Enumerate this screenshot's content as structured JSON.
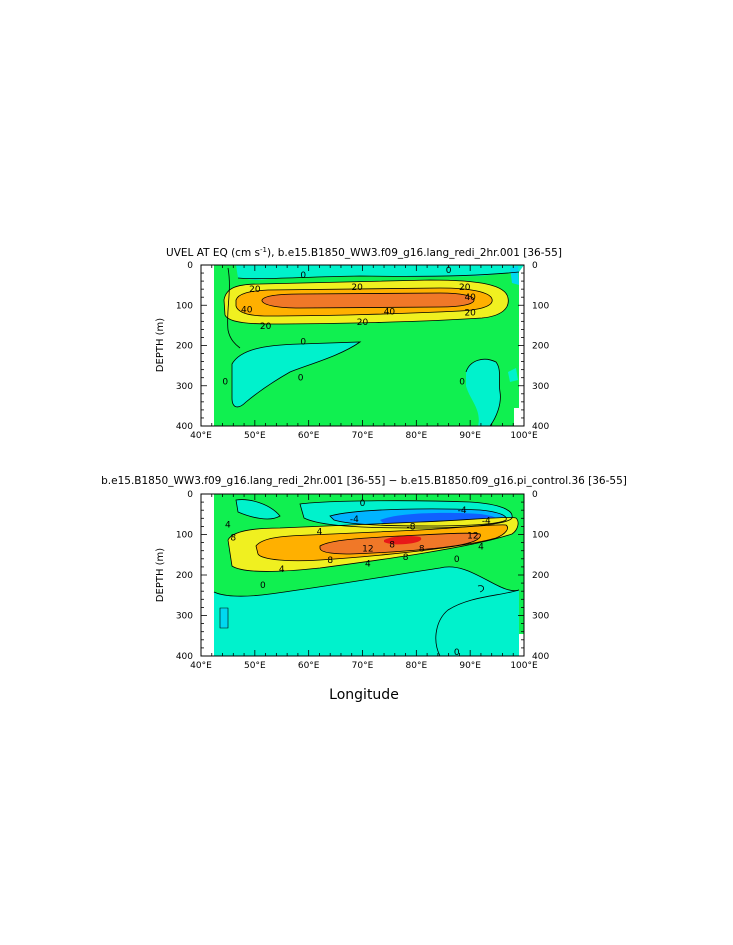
{
  "chart_data": [
    {
      "type": "heatmap",
      "title": "UVEL AT EQ (cm s",
      "title_sup": "-1",
      "title_rest": "), b.e15.B1850_WW3.f09_g16.lang_redi_2hr.001  [36-55]",
      "xlabel": "",
      "ylabel": "DEPTH (m)",
      "xlim": [
        40,
        100
      ],
      "ylim": [
        400,
        0
      ],
      "x_ticks": [
        "40°E",
        "50°E",
        "60°E",
        "70°E",
        "80°E",
        "90°E",
        "100°E"
      ],
      "y_ticks": [
        "0",
        "100",
        "200",
        "300",
        "400"
      ],
      "contour_labels": [
        {
          "text": "0",
          "lon": 59,
          "depth": 25
        },
        {
          "text": "0",
          "lon": 86,
          "depth": 12
        },
        {
          "text": "20",
          "lon": 50,
          "depth": 60
        },
        {
          "text": "20",
          "lon": 69,
          "depth": 55
        },
        {
          "text": "20",
          "lon": 89,
          "depth": 55
        },
        {
          "text": "40",
          "lon": 48.5,
          "depth": 110
        },
        {
          "text": "40",
          "lon": 75,
          "depth": 115
        },
        {
          "text": "40",
          "lon": 90,
          "depth": 80
        },
        {
          "text": "20",
          "lon": 52,
          "depth": 152
        },
        {
          "text": "20",
          "lon": 70,
          "depth": 142
        },
        {
          "text": "20",
          "lon": 90,
          "depth": 118
        },
        {
          "text": "0",
          "lon": 59,
          "depth": 190
        },
        {
          "text": "0",
          "lon": 44.5,
          "depth": 290
        },
        {
          "text": "0",
          "lon": 58.5,
          "depth": 280
        },
        {
          "text": "0",
          "lon": 88.5,
          "depth": 290
        }
      ]
    },
    {
      "type": "heatmap",
      "title": "b.e15.B1850_WW3.f09_g16.lang_redi_2hr.001  [36-55]  −  b.e15.B1850.f09_g16.pi_control.36  [36-55]",
      "xlabel": "Longitude",
      "ylabel": "DEPTH (m)",
      "xlim": [
        40,
        100
      ],
      "ylim": [
        400,
        0
      ],
      "x_ticks": [
        "40°E",
        "50°E",
        "60°E",
        "70°E",
        "80°E",
        "90°E",
        "100°E"
      ],
      "y_ticks": [
        "0",
        "100",
        "200",
        "300",
        "400"
      ],
      "contour_labels": [
        {
          "text": "0",
          "lon": 70,
          "depth": 22
        },
        {
          "text": "-4",
          "lon": 68.5,
          "depth": 62
        },
        {
          "text": "-4",
          "lon": 88.5,
          "depth": 40
        },
        {
          "text": "-4",
          "lon": 93,
          "depth": 65
        },
        {
          "text": "-8",
          "lon": 79,
          "depth": 80
        },
        {
          "text": "4",
          "lon": 45,
          "depth": 75
        },
        {
          "text": "4",
          "lon": 62,
          "depth": 92
        },
        {
          "text": "8",
          "lon": 46,
          "depth": 108
        },
        {
          "text": "8",
          "lon": 75.5,
          "depth": 125
        },
        {
          "text": "8",
          "lon": 78,
          "depth": 155
        },
        {
          "text": "8",
          "lon": 81,
          "depth": 135
        },
        {
          "text": "12",
          "lon": 71,
          "depth": 135
        },
        {
          "text": "12",
          "lon": 90.5,
          "depth": 103
        },
        {
          "text": "8",
          "lon": 64,
          "depth": 163
        },
        {
          "text": "4",
          "lon": 55,
          "depth": 185
        },
        {
          "text": "4",
          "lon": 71,
          "depth": 172
        },
        {
          "text": "4",
          "lon": 92,
          "depth": 130
        },
        {
          "text": "0",
          "lon": 87.5,
          "depth": 160
        },
        {
          "text": "0",
          "lon": 51.5,
          "depth": 225
        },
        {
          "text": "0",
          "lon": 87.5,
          "depth": 390
        }
      ]
    }
  ]
}
